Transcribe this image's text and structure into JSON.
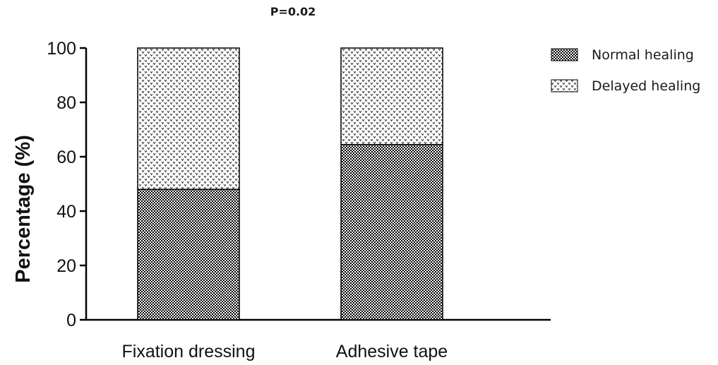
{
  "chart_data": {
    "type": "bar",
    "stacked": true,
    "annotation": "P=0.02",
    "xlabel": "",
    "ylabel": "Percentage  (%)",
    "ylim": [
      0,
      100
    ],
    "yticks": [
      0,
      20,
      40,
      60,
      80,
      100
    ],
    "categories": [
      "Fixation dressing",
      "Adhesive tape"
    ],
    "series": [
      {
        "name": "Normal healing",
        "values": [
          48,
          64.5
        ],
        "pattern": "dense-checker",
        "color": "#000000"
      },
      {
        "name": "Delayed healing",
        "values": [
          52,
          35.5
        ],
        "pattern": "sparse-v-dots",
        "color": "#000000"
      }
    ],
    "legend": "right",
    "grid": false
  }
}
